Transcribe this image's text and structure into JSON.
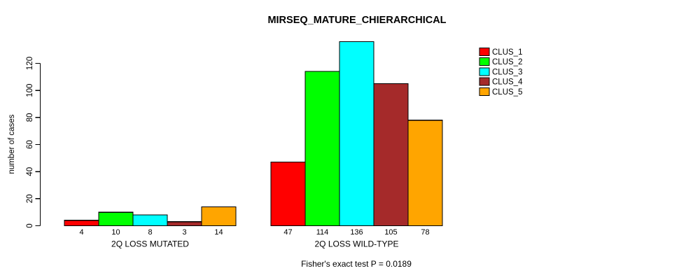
{
  "chart_data": {
    "type": "bar",
    "title": "MIRSEQ_MATURE_CHIERARCHICAL",
    "ylabel": "number of cases",
    "xlabel": "",
    "note": "Fisher's exact test P = 0.0189",
    "yticks": [
      0,
      20,
      40,
      60,
      80,
      100,
      120
    ],
    "ylim": [
      0,
      140
    ],
    "grid": false,
    "legend_position": "right",
    "bar_value_labels": true,
    "categories": [
      "2Q LOSS MUTATED",
      "2Q LOSS WILD-TYPE"
    ],
    "series": [
      {
        "name": "CLUS_1",
        "color": "#FF0000",
        "values": [
          4,
          47
        ]
      },
      {
        "name": "CLUS_2",
        "color": "#00FF00",
        "values": [
          10,
          114
        ]
      },
      {
        "name": "CLUS_3",
        "color": "#00FFFF",
        "values": [
          8,
          136
        ]
      },
      {
        "name": "CLUS_4",
        "color": "#A52A2A",
        "values": [
          3,
          105
        ]
      },
      {
        "name": "CLUS_5",
        "color": "#FFA500",
        "values": [
          14,
          78
        ]
      }
    ],
    "colors": {
      "axis": "#000000",
      "bar_border": "#000000",
      "background": "#FFFFFF"
    }
  }
}
